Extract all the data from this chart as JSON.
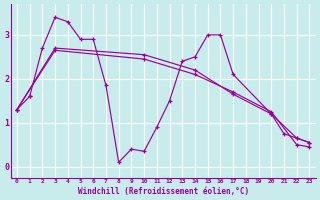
{
  "xlabel": "Windchill (Refroidissement éolien,°C)",
  "bg_color": "#c8ecec",
  "line_color": "#990099",
  "grid_color": "#ffffff",
  "xlim": [
    -0.5,
    23.5
  ],
  "ylim": [
    -0.25,
    3.7
  ],
  "yticks": [
    0,
    1,
    2,
    3
  ],
  "xticks": [
    0,
    1,
    2,
    3,
    4,
    5,
    6,
    7,
    8,
    9,
    10,
    11,
    12,
    13,
    14,
    15,
    16,
    17,
    18,
    19,
    20,
    21,
    22,
    23
  ],
  "line1_x": [
    1,
    2,
    3,
    4,
    5,
    6,
    7,
    8,
    9,
    10,
    11,
    12,
    13,
    14,
    15,
    16,
    17,
    20,
    21,
    22,
    23
  ],
  "line1_y": [
    1.6,
    2.7,
    3.4,
    3.3,
    2.9,
    2.9,
    1.85,
    0.1,
    0.4,
    0.35,
    0.9,
    1.5,
    2.4,
    2.5,
    3.0,
    3.0,
    2.1,
    1.2,
    0.75,
    0.65,
    0.55
  ],
  "line2_x": [
    0,
    3,
    10,
    14,
    17,
    20,
    22,
    23
  ],
  "line2_y": [
    1.3,
    2.7,
    2.55,
    2.2,
    1.65,
    1.2,
    0.65,
    0.55
  ],
  "line3_x": [
    0,
    3,
    10,
    14,
    17,
    20,
    22,
    23
  ],
  "line3_y": [
    1.3,
    2.65,
    2.45,
    2.1,
    1.7,
    1.25,
    0.5,
    0.45
  ],
  "line4_x": [
    0,
    1
  ],
  "line4_y": [
    1.3,
    1.6
  ]
}
